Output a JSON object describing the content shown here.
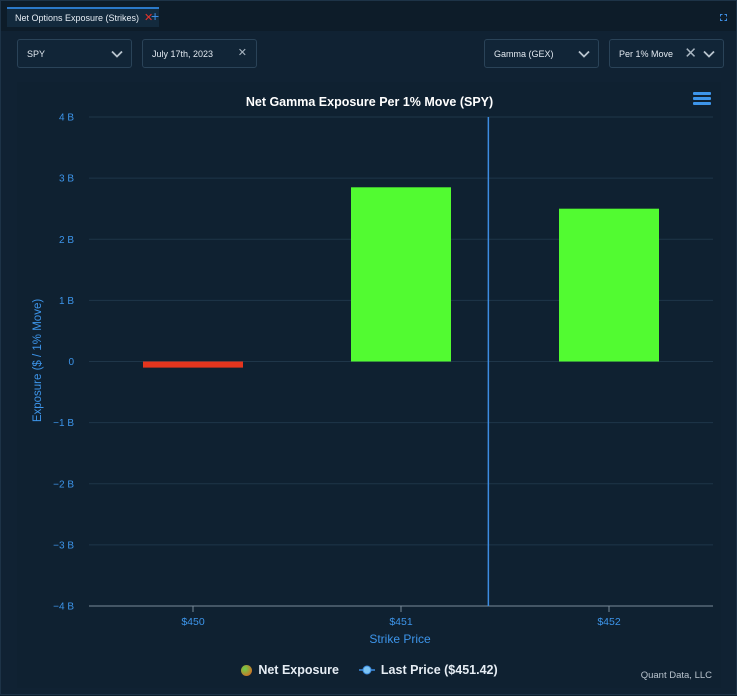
{
  "tabs": [
    {
      "label": "Net Options Exposure (Strikes)"
    }
  ],
  "controls": {
    "ticker": "SPY",
    "date": "July 17th, 2023",
    "greek": "Gamma (GEX)",
    "mode": "Per 1% Move"
  },
  "icons": {
    "tab_close": "close-icon",
    "tab_add": "plus-icon",
    "maximize": "maximize-icon",
    "dropdown": "chevron-down-icon",
    "menu": "hamburger-menu-icon"
  },
  "colors": {
    "positive_bar": "#52fb31",
    "negative_bar": "#e5351e",
    "last_price_line": "#3d8ce0",
    "axis_text": "#3d95ea",
    "accent": "#2b79c9"
  },
  "chart_data": {
    "type": "bar",
    "title": "Net Gamma Exposure Per 1% Move (SPY)",
    "xlabel": "Strike Price",
    "ylabel": "Exposure ($ / 1% Move)",
    "categories": [
      "$450",
      "$451",
      "$452"
    ],
    "series": [
      {
        "name": "Net Exposure",
        "values": [
          -0.1,
          2.85,
          2.5
        ]
      }
    ],
    "ylim": [
      -4,
      4
    ],
    "yticks": [
      4,
      3,
      2,
      1,
      0,
      -1,
      -2,
      -3,
      -4
    ],
    "ytick_labels": [
      "4 B",
      "3 B",
      "2 B",
      "1 B",
      "0",
      "−1 B",
      "−2 B",
      "−3 B",
      "−4 B"
    ],
    "last_price": {
      "label": "Last Price ($451.42)",
      "value": 451.42
    },
    "grid": true,
    "legend_position": "bottom-center"
  },
  "credit": "Quant Data, LLC"
}
